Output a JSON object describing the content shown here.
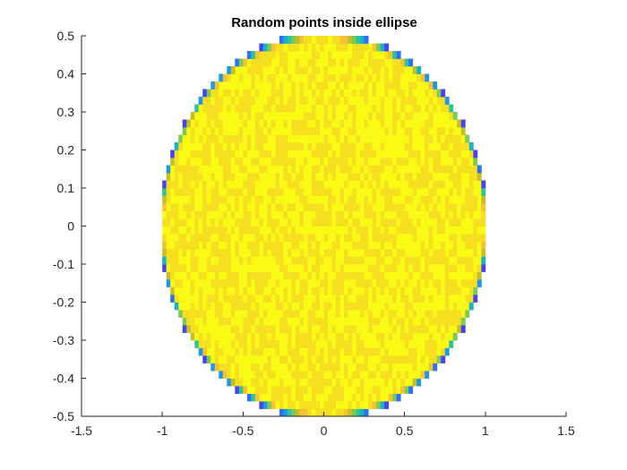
{
  "chart_data": {
    "type": "heatmap",
    "title": "Random points inside ellipse",
    "xlabel": "",
    "ylabel": "",
    "xlim": [
      -1.5,
      1.5
    ],
    "ylim": [
      -0.5,
      0.5
    ],
    "xticks": [
      "-1.5",
      "-1",
      "-0.5",
      "0",
      "0.5",
      "1",
      "1.5"
    ],
    "yticks": [
      "-0.5",
      "-0.4",
      "-0.3",
      "-0.2",
      "-0.1",
      "0",
      "0.1",
      "0.2",
      "0.3",
      "0.4",
      "0.5"
    ],
    "grid": false,
    "region": {
      "shape": "ellipse",
      "center": [
        0,
        0
      ],
      "semi_axis_x": 1.0,
      "semi_axis_y": 0.5
    },
    "bins": {
      "nx": 80,
      "ny": 50
    },
    "density": {
      "interior": "uniform (high)",
      "boundary": "partial bins (lower)"
    },
    "colormap": [
      "#3e26a8",
      "#4743f3",
      "#2f6ffe",
      "#1e97e9",
      "#16b3c7",
      "#2ec498",
      "#7bc956",
      "#c4be2d",
      "#f5c236",
      "#f6de20",
      "#f9fb15"
    ]
  }
}
